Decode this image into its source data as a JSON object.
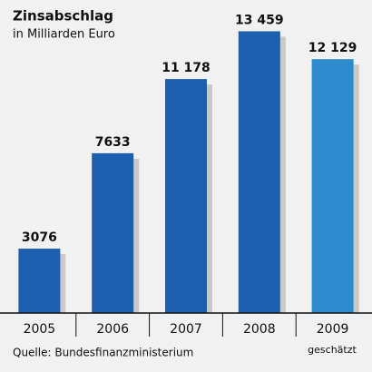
{
  "chart_data": {
    "type": "bar",
    "title": "Zinsabschlag",
    "subtitle": "in Milliarden Euro",
    "categories": [
      "2005",
      "2006",
      "2007",
      "2008",
      "2009"
    ],
    "values": [
      3076,
      7633,
      11178,
      13459,
      12129
    ],
    "value_labels": [
      "3076",
      "7633",
      "11 178",
      "13 459",
      "12 129"
    ],
    "colors": [
      "#1b5fad",
      "#1b5fad",
      "#1b5fad",
      "#1b5fad",
      "#2b8bcb"
    ],
    "annotation": "geschätzt",
    "source": "Quelle: Bundesfinanzministerium",
    "ylim": [
      0,
      14000
    ]
  }
}
